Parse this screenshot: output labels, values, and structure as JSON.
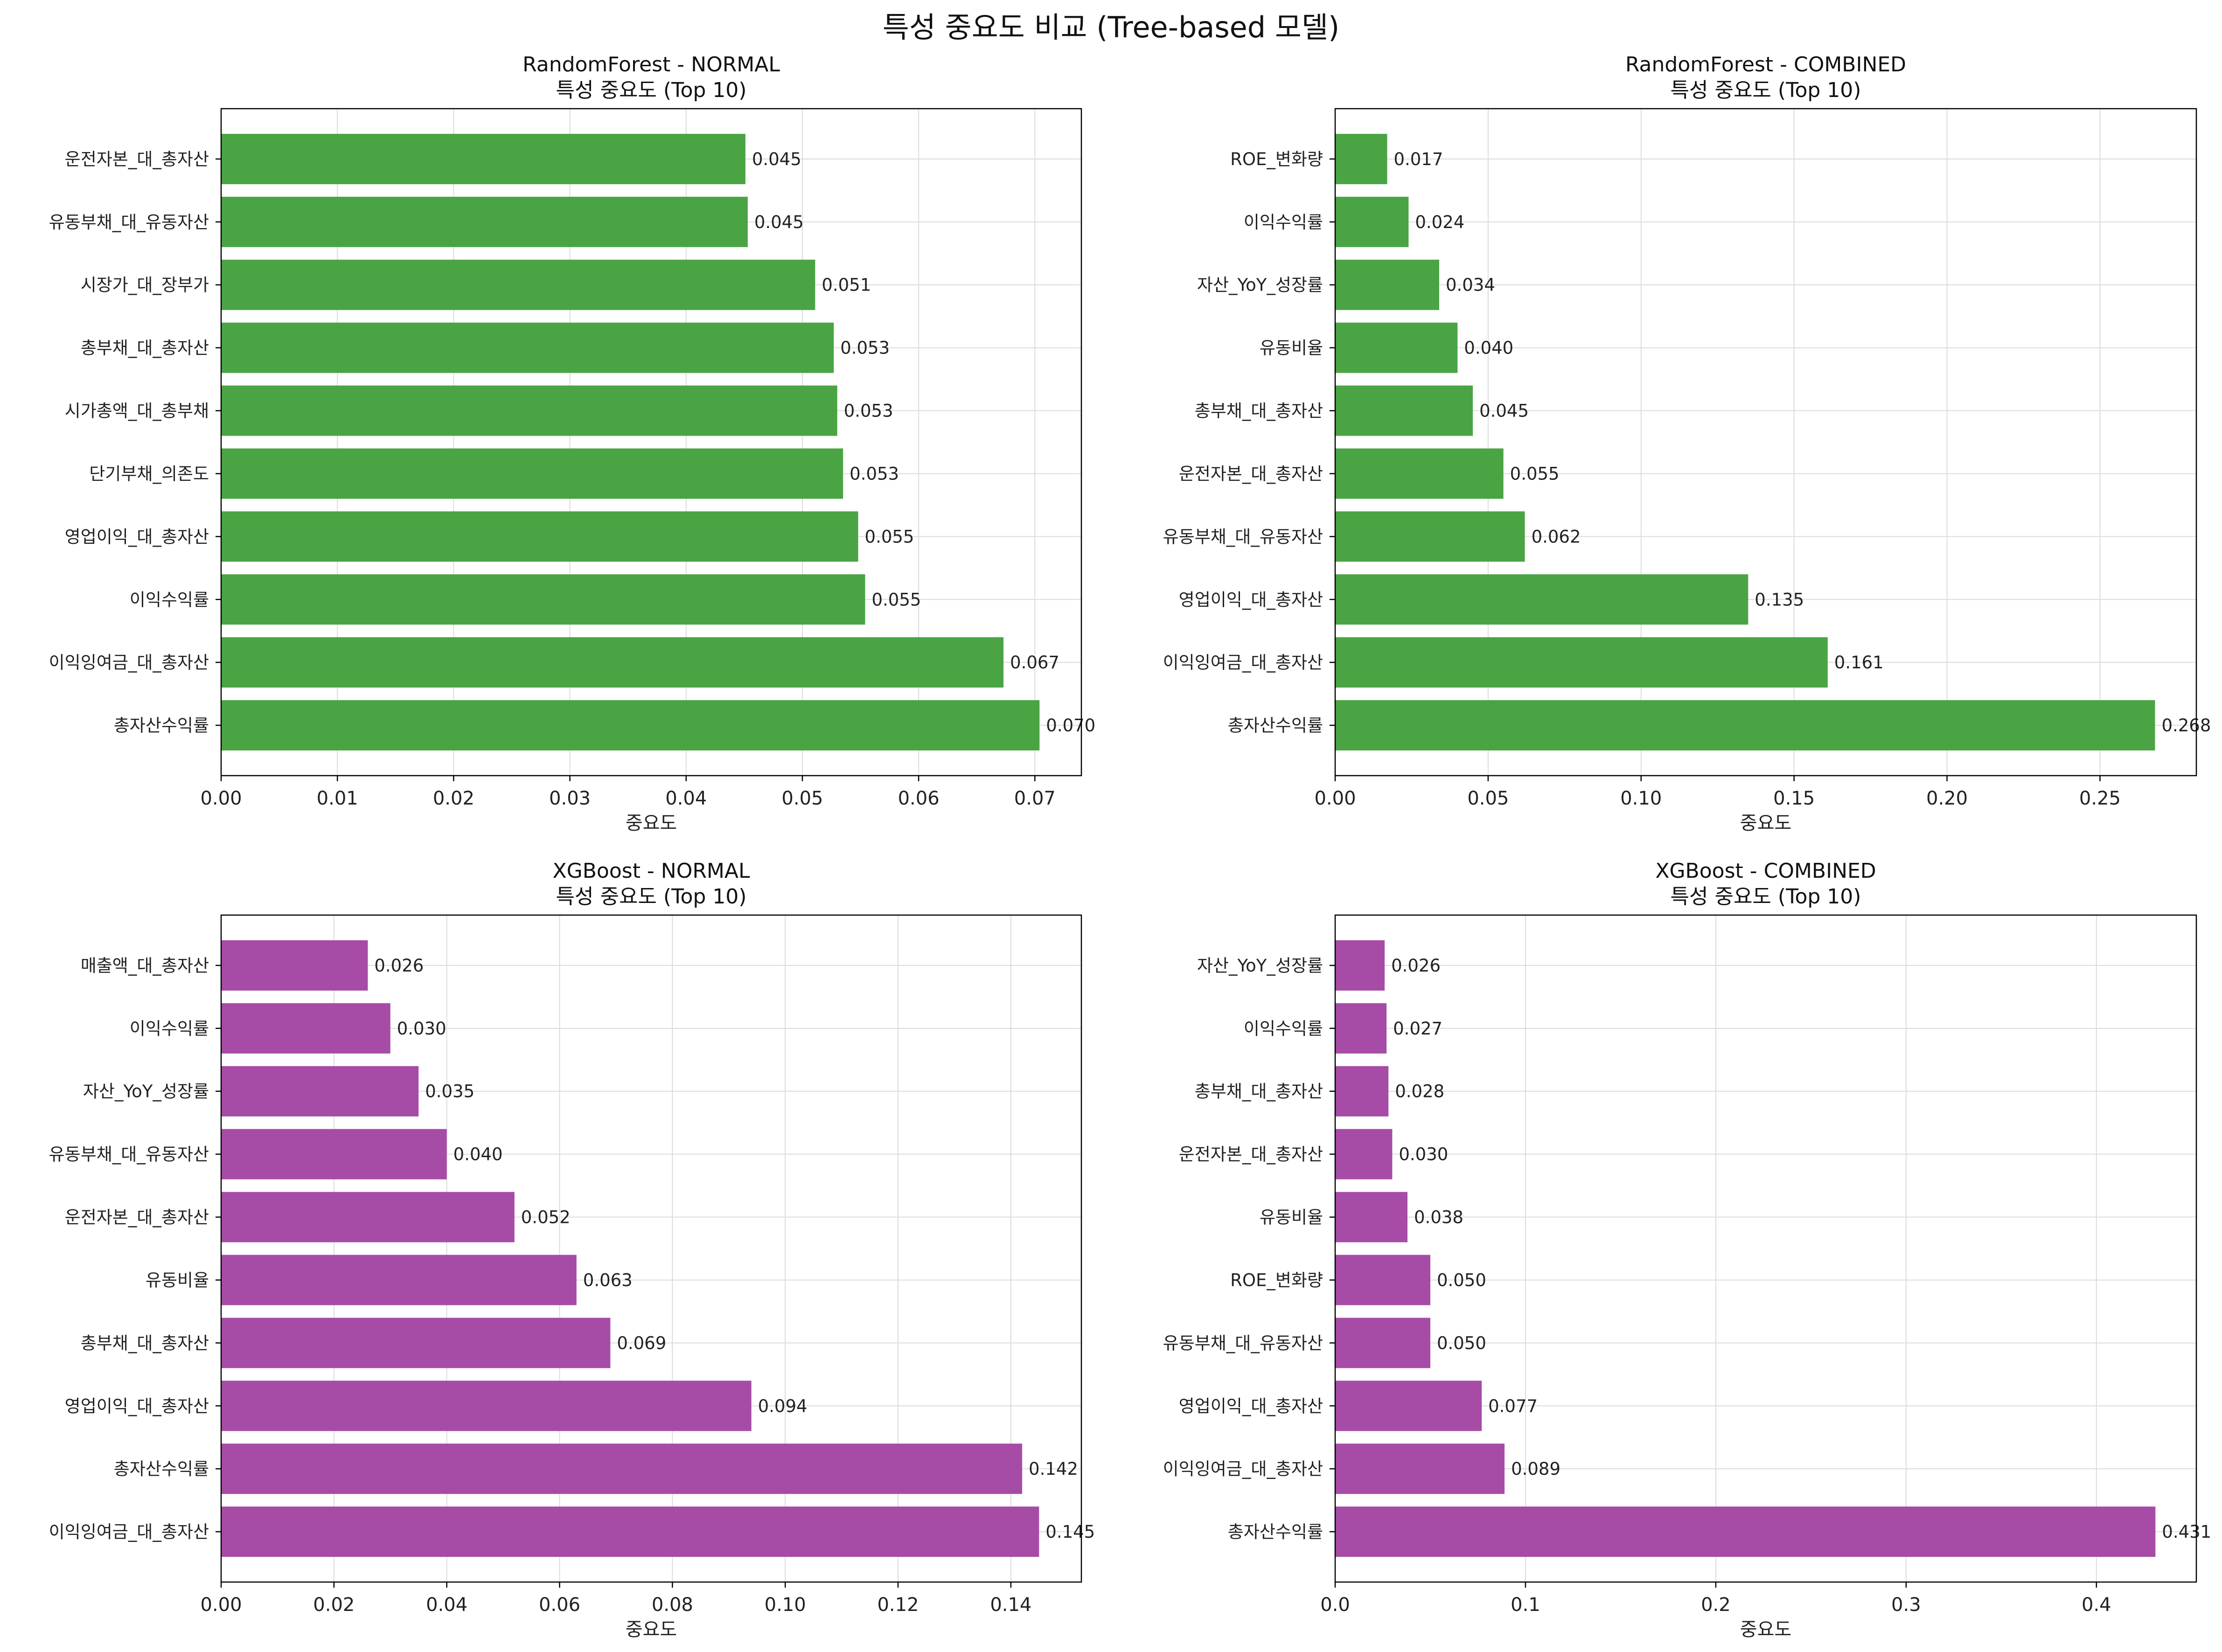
{
  "figure_title": "특성 중요도 비교 (Tree-based 모델)",
  "colors": {
    "green": "#4aa444",
    "purple": "#a64ca6",
    "grid": "#dcdcdc",
    "axis": "#000000"
  },
  "chart_data": [
    {
      "type": "bar",
      "orientation": "horizontal",
      "bar_color": "green",
      "title_line1": "RandomForest - NORMAL",
      "title_line2": "특성 중요도 (Top 10)",
      "xlabel": "중요도",
      "xlim": [
        0,
        0.074
      ],
      "xticks": [
        0.0,
        0.01,
        0.02,
        0.03,
        0.04,
        0.05,
        0.06,
        0.07
      ],
      "xtick_labels": [
        "0.00",
        "0.01",
        "0.02",
        "0.03",
        "0.04",
        "0.05",
        "0.06",
        "0.07"
      ],
      "grid": true,
      "categories": [
        "운전자본_대_총자산",
        "유동부채_대_유동자산",
        "시장가_대_장부가",
        "총부채_대_총자산",
        "시가총액_대_총부채",
        "단기부채_의존도",
        "영업이익_대_총자산",
        "이익수익률",
        "이익잉여금_대_총자산",
        "총자산수익률"
      ],
      "values": [
        0.0451,
        0.0453,
        0.0511,
        0.0527,
        0.053,
        0.0535,
        0.0548,
        0.0554,
        0.0673,
        0.0704
      ],
      "value_labels": [
        "0.045",
        "0.045",
        "0.051",
        "0.053",
        "0.053",
        "0.053",
        "0.055",
        "0.055",
        "0.067",
        "0.070"
      ]
    },
    {
      "type": "bar",
      "orientation": "horizontal",
      "bar_color": "green",
      "title_line1": "RandomForest - COMBINED",
      "title_line2": "특성 중요도 (Top 10)",
      "xlabel": "중요도",
      "xlim": [
        0,
        0.2815
      ],
      "xticks": [
        0.0,
        0.05,
        0.1,
        0.15,
        0.2,
        0.25
      ],
      "xtick_labels": [
        "0.00",
        "0.05",
        "0.10",
        "0.15",
        "0.20",
        "0.25"
      ],
      "grid": true,
      "categories": [
        "ROE_변화량",
        "이익수익률",
        "자산_YoY_성장률",
        "유동비율",
        "총부채_대_총자산",
        "운전자본_대_총자산",
        "유동부채_대_유동자산",
        "영업이익_대_총자산",
        "이익잉여금_대_총자산",
        "총자산수익률"
      ],
      "values": [
        0.017,
        0.024,
        0.034,
        0.04,
        0.045,
        0.055,
        0.062,
        0.135,
        0.161,
        0.268
      ],
      "value_labels": [
        "0.017",
        "0.024",
        "0.034",
        "0.040",
        "0.045",
        "0.055",
        "0.062",
        "0.135",
        "0.161",
        "0.268"
      ]
    },
    {
      "type": "bar",
      "orientation": "horizontal",
      "bar_color": "purple",
      "title_line1": "XGBoost - NORMAL",
      "title_line2": "특성 중요도 (Top 10)",
      "xlabel": "중요도",
      "xlim": [
        0,
        0.1525
      ],
      "xticks": [
        0.0,
        0.02,
        0.04,
        0.06,
        0.08,
        0.1,
        0.12,
        0.14
      ],
      "xtick_labels": [
        "0.00",
        "0.02",
        "0.04",
        "0.06",
        "0.08",
        "0.10",
        "0.12",
        "0.14"
      ],
      "grid": true,
      "categories": [
        "매출액_대_총자산",
        "이익수익률",
        "자산_YoY_성장률",
        "유동부채_대_유동자산",
        "운전자본_대_총자산",
        "유동비율",
        "총부채_대_총자산",
        "영업이익_대_총자산",
        "총자산수익률",
        "이익잉여금_대_총자산"
      ],
      "values": [
        0.026,
        0.03,
        0.035,
        0.04,
        0.052,
        0.063,
        0.069,
        0.094,
        0.142,
        0.145
      ],
      "value_labels": [
        "0.026",
        "0.030",
        "0.035",
        "0.040",
        "0.052",
        "0.063",
        "0.069",
        "0.094",
        "0.142",
        "0.145"
      ]
    },
    {
      "type": "bar",
      "orientation": "horizontal",
      "bar_color": "purple",
      "title_line1": "XGBoost - COMBINED",
      "title_line2": "특성 중요도 (Top 10)",
      "xlabel": "중요도",
      "xlim": [
        0,
        0.4525
      ],
      "xticks": [
        0.0,
        0.1,
        0.2,
        0.3,
        0.4
      ],
      "xtick_labels": [
        "0.0",
        "0.1",
        "0.2",
        "0.3",
        "0.4"
      ],
      "grid": true,
      "categories": [
        "자산_YoY_성장률",
        "이익수익률",
        "총부채_대_총자산",
        "운전자본_대_총자산",
        "유동비율",
        "ROE_변화량",
        "유동부채_대_유동자산",
        "영업이익_대_총자산",
        "이익잉여금_대_총자산",
        "총자산수익률"
      ],
      "values": [
        0.026,
        0.027,
        0.028,
        0.03,
        0.038,
        0.05,
        0.05,
        0.077,
        0.089,
        0.431
      ],
      "value_labels": [
        "0.026",
        "0.027",
        "0.028",
        "0.030",
        "0.038",
        "0.050",
        "0.050",
        "0.077",
        "0.089",
        "0.431"
      ]
    }
  ]
}
